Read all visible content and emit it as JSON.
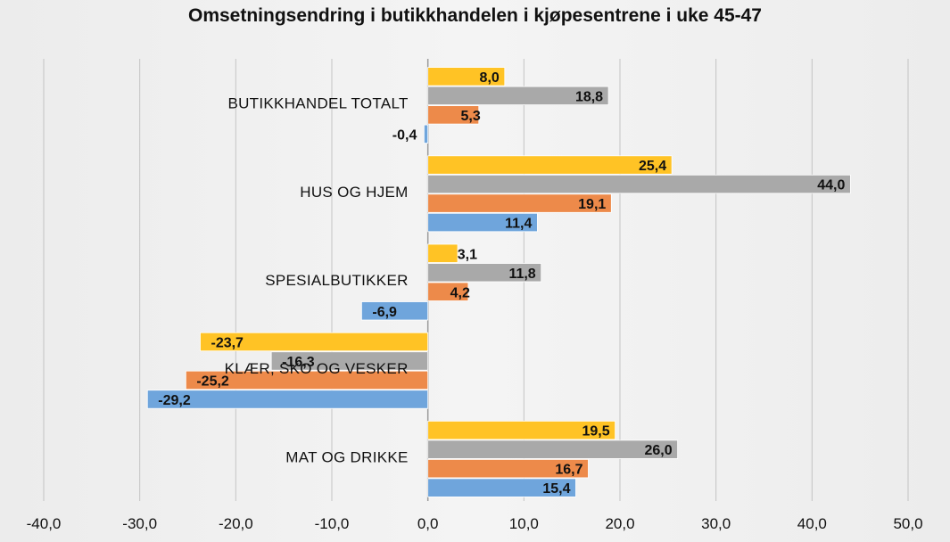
{
  "chart_data": {
    "type": "bar",
    "orientation": "horizontal",
    "title": "Omsetningsendring i butikkhandelen i kjøpesentrene i uke 45-47",
    "categories": [
      "BUTIKKHANDEL TOTALT",
      "HUS OG HJEM",
      "SPESIALBUTIKKER",
      "KLÆR, SKO OG VESKER",
      "MAT OG DRIKKE"
    ],
    "series": [
      {
        "color": "#ffc325",
        "values": [
          8.0,
          25.4,
          3.1,
          -23.7,
          19.5
        ],
        "labels": [
          "8,0",
          "25,4",
          "3,1",
          "-23,7",
          "19,5"
        ]
      },
      {
        "color": "#a9a9a9",
        "values": [
          18.8,
          44.0,
          11.8,
          -16.3,
          26.0
        ],
        "labels": [
          "18,8",
          "44,0",
          "11,8",
          "-16,3",
          "26,0"
        ]
      },
      {
        "color": "#ed8a4a",
        "values": [
          5.3,
          19.1,
          4.2,
          -25.2,
          16.7
        ],
        "labels": [
          "5,3",
          "19,1",
          "4,2",
          "-25,2",
          "16,7"
        ]
      },
      {
        "color": "#6fa5dc",
        "values": [
          -0.4,
          11.4,
          -6.9,
          -29.2,
          15.4
        ],
        "labels": [
          "-0,4",
          "11,4",
          "-6,9",
          "-29,2",
          "15,4"
        ]
      }
    ],
    "xlim": [
      -40,
      50
    ],
    "xticks": [
      -40,
      -30,
      -20,
      -10,
      0,
      10,
      20,
      30,
      40,
      50
    ],
    "xtick_labels": [
      "-40,0",
      "-30,0",
      "-20,0",
      "-10,0",
      "0,0",
      "10,0",
      "20,0",
      "30,0",
      "40,0",
      "50,0"
    ],
    "grid": "vertical",
    "legend": "none"
  }
}
